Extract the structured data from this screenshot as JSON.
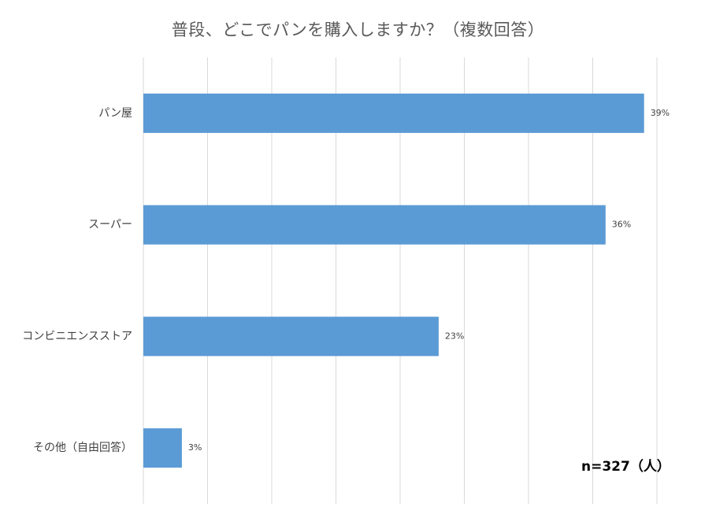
{
  "chart_data": {
    "type": "bar",
    "orientation": "horizontal",
    "title": "普段、どこでパンを購入しますか？（複数回答）",
    "categories": [
      "パン屋",
      "スーパー",
      "コンビニエンスストア",
      "その他（自由回答）"
    ],
    "values": [
      39,
      36,
      23,
      3
    ],
    "value_labels": [
      "39%",
      "36%",
      "23%",
      "3%"
    ],
    "xlim": [
      0,
      40
    ],
    "grid": true,
    "legend": "none",
    "bar_color": "#5B9BD5",
    "grid_color": "#D9D9D9"
  },
  "annotation": {
    "sample_size": "n=327（人）"
  }
}
